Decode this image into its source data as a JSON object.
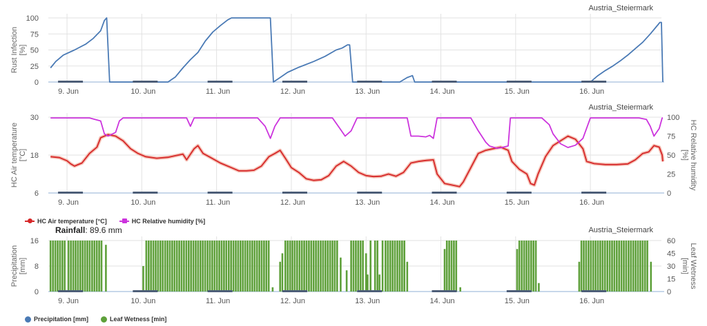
{
  "rainfall": {
    "label": "Rainfall",
    "value": "89.6 mm"
  },
  "chart_data": [
    {
      "type": "line",
      "location": "Austria_Steiermark",
      "ylabel": "Rust Infection [%]",
      "ylim": [
        0,
        100
      ],
      "yticks": [
        0,
        25,
        50,
        75,
        100
      ],
      "xlim": [
        8.75,
        16.95
      ],
      "x_tick_labels": [
        "9. Jun",
        "10. Jun",
        "11. Jun",
        "12. Jun",
        "13. Jun",
        "14. Jun",
        "15. Jun",
        "16. Jun"
      ],
      "grid": true,
      "series": [
        {
          "color": "#4a7ab5",
          "points": [
            [
              8.78,
              22
            ],
            [
              8.85,
              32
            ],
            [
              8.95,
              42
            ],
            [
              9.1,
              50
            ],
            [
              9.25,
              59
            ],
            [
              9.35,
              68
            ],
            [
              9.45,
              80
            ],
            [
              9.5,
              96
            ],
            [
              9.53,
              100
            ],
            [
              9.57,
              0
            ],
            [
              10.35,
              0
            ],
            [
              10.45,
              8
            ],
            [
              10.55,
              22
            ],
            [
              10.65,
              35
            ],
            [
              10.75,
              46
            ],
            [
              10.85,
              64
            ],
            [
              10.95,
              78
            ],
            [
              11.05,
              88
            ],
            [
              11.15,
              97
            ],
            [
              11.2,
              100
            ],
            [
              11.72,
              100
            ],
            [
              11.76,
              0
            ],
            [
              11.85,
              7
            ],
            [
              11.95,
              15
            ],
            [
              12.1,
              23
            ],
            [
              12.3,
              32
            ],
            [
              12.45,
              40
            ],
            [
              12.6,
              50
            ],
            [
              12.68,
              53
            ],
            [
              12.75,
              58
            ],
            [
              12.78,
              58
            ],
            [
              12.82,
              0
            ],
            [
              13.45,
              0
            ],
            [
              13.55,
              7
            ],
            [
              13.62,
              10
            ],
            [
              13.65,
              0
            ],
            [
              16.0,
              0
            ],
            [
              16.1,
              10
            ],
            [
              16.2,
              18
            ],
            [
              16.3,
              25
            ],
            [
              16.4,
              33
            ],
            [
              16.5,
              42
            ],
            [
              16.6,
              52
            ],
            [
              16.7,
              62
            ],
            [
              16.8,
              75
            ],
            [
              16.88,
              86
            ],
            [
              16.93,
              93
            ],
            [
              16.95,
              93
            ],
            [
              16.97,
              0
            ]
          ]
        }
      ]
    },
    {
      "type": "line",
      "location": "Austria_Steiermark",
      "ylabel": "HC Air temperature [°C]",
      "y2label": "HC Relative humidity [%]",
      "ylim": [
        6,
        30
      ],
      "yticks": [
        6,
        18,
        30
      ],
      "y2lim": [
        0,
        100
      ],
      "y2ticks": [
        0,
        25,
        50,
        75,
        100
      ],
      "xlim": [
        8.75,
        16.95
      ],
      "x_tick_labels": [
        "9. Jun",
        "10. Jun",
        "11. Jun",
        "12. Jun",
        "13. Jun",
        "14. Jun",
        "15. Jun",
        "16. Jun"
      ],
      "grid": true,
      "legend_position": "bottom-left",
      "series": [
        {
          "name": "HC Air temperature [°C]",
          "color": "#d62728",
          "axis": "left",
          "points": [
            [
              8.78,
              17.5
            ],
            [
              8.9,
              17.2
            ],
            [
              9.0,
              16.2
            ],
            [
              9.05,
              15.2
            ],
            [
              9.1,
              14.5
            ],
            [
              9.2,
              15.5
            ],
            [
              9.3,
              18.5
            ],
            [
              9.4,
              20.5
            ],
            [
              9.45,
              23.5
            ],
            [
              9.55,
              24.5
            ],
            [
              9.65,
              24.0
            ],
            [
              9.75,
              22.5
            ],
            [
              9.85,
              20.0
            ],
            [
              9.95,
              18.5
            ],
            [
              10.05,
              17.5
            ],
            [
              10.2,
              17.0
            ],
            [
              10.35,
              17.3
            ],
            [
              10.45,
              17.8
            ],
            [
              10.55,
              18.3
            ],
            [
              10.6,
              16.5
            ],
            [
              10.7,
              20.0
            ],
            [
              10.75,
              21.0
            ],
            [
              10.82,
              18.5
            ],
            [
              10.9,
              17.5
            ],
            [
              11.05,
              15.5
            ],
            [
              11.2,
              14.0
            ],
            [
              11.3,
              13.0
            ],
            [
              11.4,
              13.0
            ],
            [
              11.5,
              13.2
            ],
            [
              11.6,
              14.5
            ],
            [
              11.7,
              17.5
            ],
            [
              11.78,
              18.5
            ],
            [
              11.85,
              19.5
            ],
            [
              11.92,
              17.0
            ],
            [
              12.0,
              14.0
            ],
            [
              12.1,
              12.5
            ],
            [
              12.2,
              10.5
            ],
            [
              12.3,
              10.0
            ],
            [
              12.4,
              10.2
            ],
            [
              12.5,
              11.5
            ],
            [
              12.6,
              14.5
            ],
            [
              12.7,
              16.0
            ],
            [
              12.8,
              14.5
            ],
            [
              12.9,
              12.5
            ],
            [
              13.0,
              11.5
            ],
            [
              13.1,
              11.2
            ],
            [
              13.2,
              11.3
            ],
            [
              13.3,
              12.0
            ],
            [
              13.4,
              11.3
            ],
            [
              13.5,
              12.5
            ],
            [
              13.6,
              15.5
            ],
            [
              13.7,
              16.0
            ],
            [
              13.8,
              16.3
            ],
            [
              13.9,
              16.5
            ],
            [
              13.95,
              12.0
            ],
            [
              14.05,
              9.0
            ],
            [
              14.15,
              8.5
            ],
            [
              14.25,
              8.0
            ],
            [
              14.3,
              9.5
            ],
            [
              14.4,
              14.0
            ],
            [
              14.5,
              18.5
            ],
            [
              14.6,
              19.5
            ],
            [
              14.7,
              20.0
            ],
            [
              14.8,
              20.5
            ],
            [
              14.9,
              19.5
            ],
            [
              14.95,
              16.0
            ],
            [
              15.05,
              13.5
            ],
            [
              15.15,
              12.0
            ],
            [
              15.2,
              9.0
            ],
            [
              15.25,
              8.5
            ],
            [
              15.3,
              12.0
            ],
            [
              15.4,
              17.5
            ],
            [
              15.5,
              21.0
            ],
            [
              15.6,
              22.5
            ],
            [
              15.7,
              24.0
            ],
            [
              15.8,
              23.0
            ],
            [
              15.9,
              20.0
            ],
            [
              15.95,
              16.0
            ],
            [
              16.05,
              15.3
            ],
            [
              16.2,
              15.0
            ],
            [
              16.35,
              15.0
            ],
            [
              16.5,
              15.2
            ],
            [
              16.6,
              16.5
            ],
            [
              16.7,
              18.5
            ],
            [
              16.78,
              19.0
            ],
            [
              16.85,
              21.0
            ],
            [
              16.92,
              20.5
            ],
            [
              16.96,
              18.0
            ],
            [
              17.0,
              16.0
            ]
          ]
        },
        {
          "name": "HC Relative humidity [%]",
          "color": "#cc33dd",
          "axis": "right",
          "points": [
            [
              8.78,
              99
            ],
            [
              9.3,
              99
            ],
            [
              9.45,
              95
            ],
            [
              9.5,
              78
            ],
            [
              9.55,
              75
            ],
            [
              9.65,
              80
            ],
            [
              9.7,
              95
            ],
            [
              9.75,
              99
            ],
            [
              10.6,
              99
            ],
            [
              10.65,
              88
            ],
            [
              10.7,
              99
            ],
            [
              11.55,
              99
            ],
            [
              11.65,
              88
            ],
            [
              11.72,
              72
            ],
            [
              11.78,
              88
            ],
            [
              11.85,
              99
            ],
            [
              12.55,
              99
            ],
            [
              12.65,
              85
            ],
            [
              12.72,
              75
            ],
            [
              12.8,
              82
            ],
            [
              12.88,
              99
            ],
            [
              13.55,
              99
            ],
            [
              13.6,
              75
            ],
            [
              13.7,
              75
            ],
            [
              13.8,
              74
            ],
            [
              13.85,
              76
            ],
            [
              13.9,
              72
            ],
            [
              13.95,
              99
            ],
            [
              14.4,
              99
            ],
            [
              14.5,
              82
            ],
            [
              14.6,
              67
            ],
            [
              14.65,
              62
            ],
            [
              14.75,
              59
            ],
            [
              14.82,
              60
            ],
            [
              14.9,
              62
            ],
            [
              14.93,
              99
            ],
            [
              15.35,
              99
            ],
            [
              15.45,
              90
            ],
            [
              15.5,
              78
            ],
            [
              15.6,
              65
            ],
            [
              15.7,
              60
            ],
            [
              15.8,
              63
            ],
            [
              15.9,
              72
            ],
            [
              16.0,
              99
            ],
            [
              16.65,
              99
            ],
            [
              16.75,
              97
            ],
            [
              16.8,
              88
            ],
            [
              16.85,
              75
            ],
            [
              16.92,
              85
            ],
            [
              16.96,
              99
            ],
            [
              17.0,
              99
            ]
          ]
        }
      ]
    },
    {
      "type": "bar",
      "location": "Austria_Steiermark",
      "ylabel": "Precipitation [mm]",
      "y2label": "Leaf Wetness [min]",
      "ylim": [
        0,
        16
      ],
      "yticks": [
        0,
        8,
        16
      ],
      "y2lim": [
        0,
        60
      ],
      "y2ticks": [
        0,
        15,
        30,
        45,
        60
      ],
      "xlim": [
        8.75,
        16.95
      ],
      "x_tick_labels": [
        "9. Jun",
        "10. Jun",
        "11. Jun",
        "12. Jun",
        "13. Jun",
        "14. Jun",
        "15. Jun",
        "16. Jun"
      ],
      "grid": true,
      "legend_position": "bottom-left",
      "series": [
        {
          "name": "Precipitation [mm]",
          "color": "#4a7ab5",
          "values": []
        },
        {
          "name": "Leaf Wetness [min]",
          "color": "#5ea03a",
          "axis": "right",
          "segments": [
            [
              8.78,
              9.0,
              60
            ],
            [
              9.02,
              9.48,
              60
            ],
            [
              9.52,
              9.52,
              55
            ],
            [
              10.02,
              10.04,
              30
            ],
            [
              10.06,
              11.72,
              60
            ],
            [
              11.75,
              11.75,
              5
            ],
            [
              11.85,
              11.85,
              35
            ],
            [
              11.88,
              11.9,
              45
            ],
            [
              11.92,
              12.62,
              60
            ],
            [
              12.66,
              12.66,
              40
            ],
            [
              12.74,
              12.74,
              25
            ],
            [
              12.8,
              12.98,
              60
            ],
            [
              13.0,
              13.0,
              45
            ],
            [
              13.02,
              13.04,
              20
            ],
            [
              13.06,
              13.08,
              60
            ],
            [
              13.12,
              13.16,
              60
            ],
            [
              13.18,
              13.18,
              20
            ],
            [
              13.22,
              13.24,
              60
            ],
            [
              13.26,
              13.52,
              60
            ],
            [
              13.55,
              13.55,
              35
            ],
            [
              14.05,
              14.05,
              50
            ],
            [
              14.08,
              14.23,
              60
            ],
            [
              14.26,
              14.26,
              5
            ],
            [
              15.02,
              15.02,
              50
            ],
            [
              15.05,
              15.28,
              60
            ],
            [
              15.31,
              15.31,
              10
            ],
            [
              15.85,
              15.85,
              35
            ],
            [
              15.88,
              16.78,
              60
            ],
            [
              16.81,
              16.81,
              35
            ]
          ]
        }
      ]
    }
  ]
}
